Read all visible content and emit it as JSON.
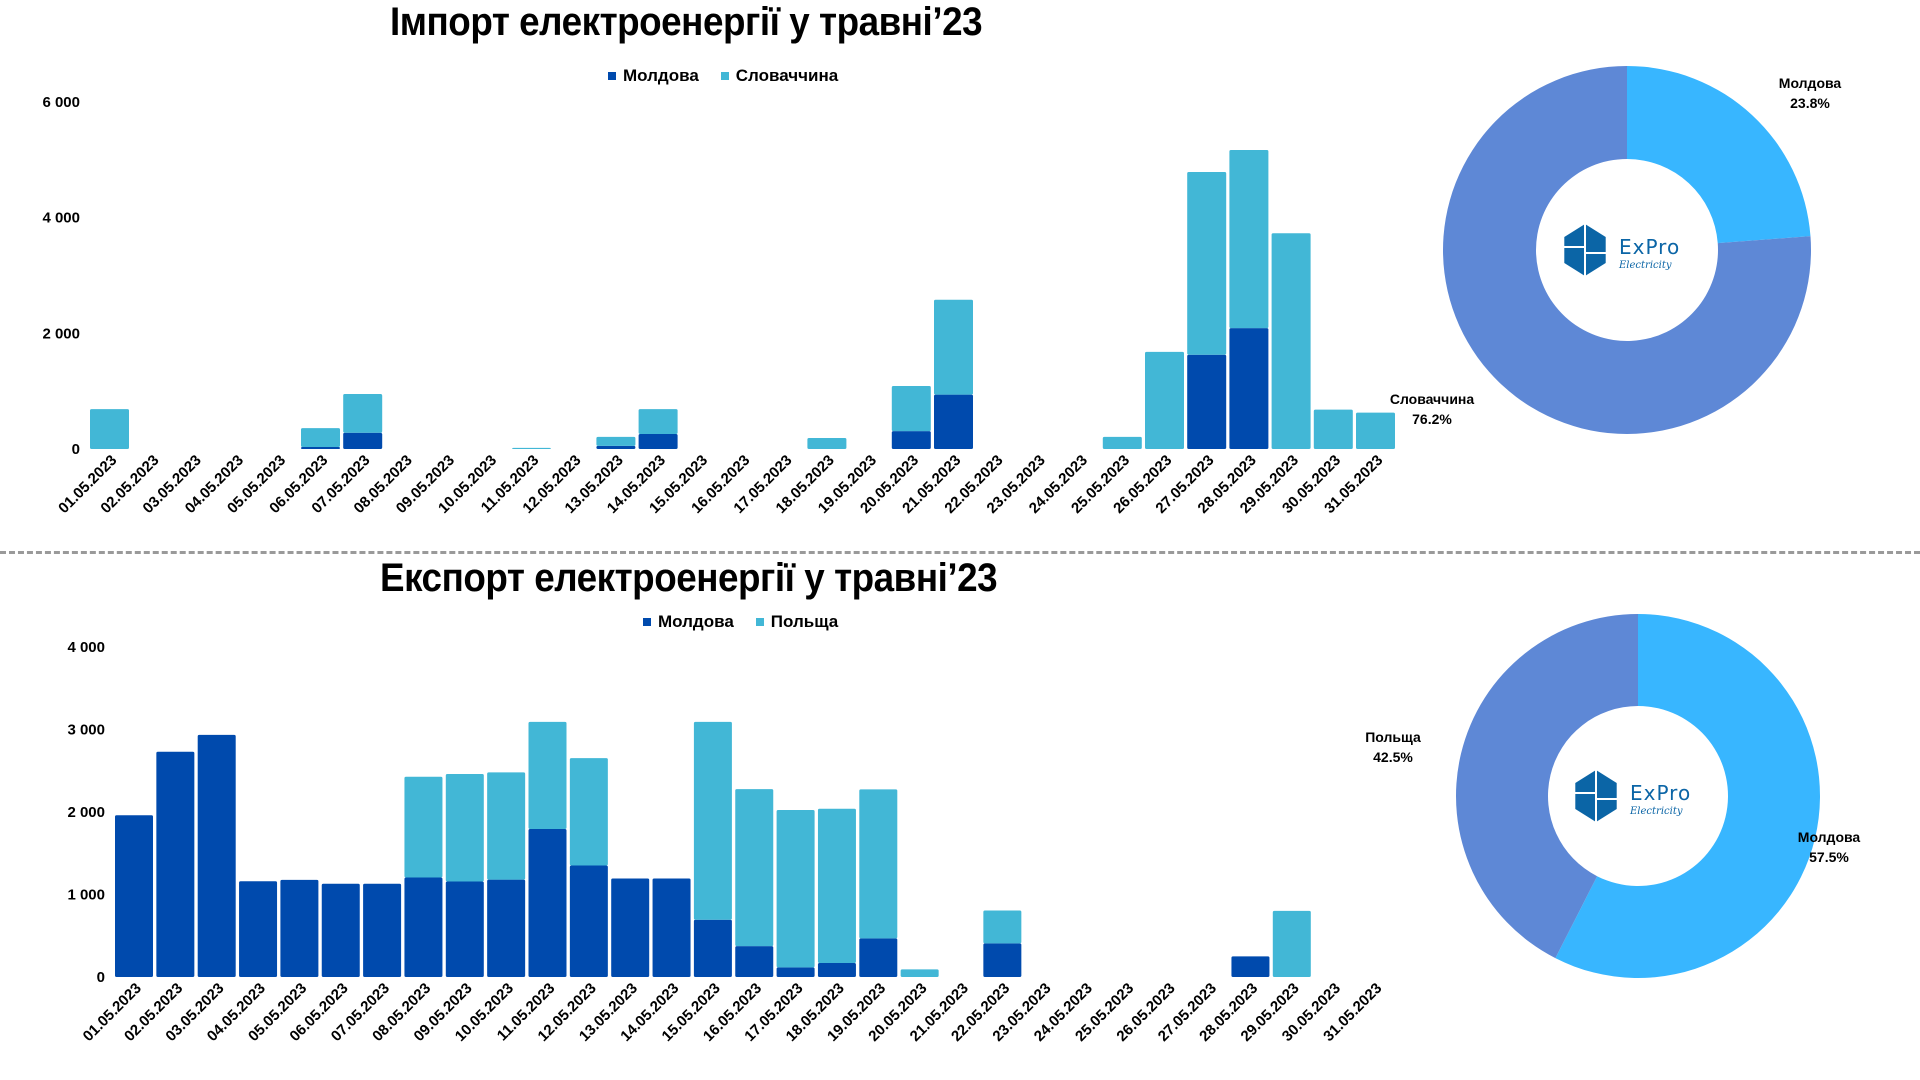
{
  "colors": {
    "moldova_bar": "#004aad",
    "second_bar": "#42b7d6",
    "pie_dark": "#5e88d6",
    "pie_light": "#38b6ff",
    "logo": "#0b65a6",
    "divider": "#9a9a9a"
  },
  "logo": {
    "name": "ExPro",
    "tagline": "Electricity"
  },
  "chart_data": [
    {
      "type": "bar",
      "stacked": true,
      "title": "Імпорт електроенергії у травні’23",
      "xlabel": "",
      "ylabel": "",
      "ylim": [
        0,
        6000
      ],
      "yticks": [
        0,
        2000,
        4000,
        6000
      ],
      "ytick_labels": [
        "0",
        "2 000",
        "4 000",
        "6 000"
      ],
      "grid": false,
      "legend_position": "top-center",
      "categories": [
        "01.05.2023",
        "02.05.2023",
        "03.05.2023",
        "04.05.2023",
        "05.05.2023",
        "06.05.2023",
        "07.05.2023",
        "08.05.2023",
        "09.05.2023",
        "10.05.2023",
        "11.05.2023",
        "12.05.2023",
        "13.05.2023",
        "14.05.2023",
        "15.05.2023",
        "16.05.2023",
        "17.05.2023",
        "18.05.2023",
        "19.05.2023",
        "20.05.2023",
        "21.05.2023",
        "22.05.2023",
        "23.05.2023",
        "24.05.2023",
        "25.05.2023",
        "26.05.2023",
        "27.05.2023",
        "28.05.2023",
        "29.05.2023",
        "30.05.2023",
        "31.05.2023"
      ],
      "series": [
        {
          "name": "Молдова",
          "values": [
            0,
            0,
            0,
            0,
            0,
            35,
            280,
            0,
            0,
            0,
            0,
            0,
            55,
            260,
            0,
            0,
            0,
            0,
            0,
            310,
            940,
            0,
            0,
            0,
            0,
            0,
            1630,
            2090,
            0,
            0,
            0
          ]
        },
        {
          "name": "Словаччина",
          "values": [
            690,
            0,
            0,
            0,
            0,
            325,
            670,
            0,
            0,
            0,
            20,
            0,
            155,
            430,
            0,
            0,
            0,
            190,
            0,
            780,
            1640,
            0,
            0,
            0,
            210,
            1680,
            3160,
            3080,
            3730,
            680,
            630
          ]
        }
      ]
    },
    {
      "type": "pie",
      "donut": true,
      "title": "",
      "labels": [
        "Молдова",
        "Словаччина"
      ],
      "values": [
        23.8,
        76.2
      ],
      "value_labels": [
        "23.8%",
        "76.2%"
      ]
    },
    {
      "type": "bar",
      "stacked": true,
      "title": "Експорт електроенергії у травні’23",
      "xlabel": "",
      "ylabel": "",
      "ylim": [
        0,
        4000
      ],
      "yticks": [
        0,
        1000,
        2000,
        3000,
        4000
      ],
      "ytick_labels": [
        "0",
        "1 000",
        "2 000",
        "3 000",
        "4 000"
      ],
      "grid": false,
      "legend_position": "top-center",
      "categories": [
        "01.05.2023",
        "02.05.2023",
        "03.05.2023",
        "04.05.2023",
        "05.05.2023",
        "06.05.2023",
        "07.05.2023",
        "08.05.2023",
        "09.05.2023",
        "10.05.2023",
        "11.05.2023",
        "12.05.2023",
        "13.05.2023",
        "14.05.2023",
        "15.05.2023",
        "16.05.2023",
        "17.05.2023",
        "18.05.2023",
        "19.05.2023",
        "20.05.2023",
        "21.05.2023",
        "22.05.2023",
        "23.05.2023",
        "24.05.2023",
        "25.05.2023",
        "26.05.2023",
        "27.05.2023",
        "28.05.2023",
        "29.05.2023",
        "30.05.2023",
        "31.05.2023"
      ],
      "series": [
        {
          "name": "Молдова",
          "values": [
            1960,
            2730,
            2935,
            1160,
            1177,
            1130,
            1130,
            1206,
            1157,
            1181,
            1794,
            1351,
            1194,
            1194,
            694,
            375,
            117,
            169,
            468,
            0,
            0,
            407,
            0,
            0,
            0,
            0,
            0,
            250,
            0,
            0,
            0
          ]
        },
        {
          "name": "Польща",
          "values": [
            0,
            0,
            0,
            0,
            0,
            0,
            0,
            1221,
            1303,
            1299,
            1299,
            1302,
            0,
            0,
            2399,
            1903,
            1907,
            1871,
            1806,
            93,
            0,
            399,
            0,
            0,
            0,
            0,
            0,
            0,
            802,
            0,
            0
          ]
        }
      ]
    },
    {
      "type": "pie",
      "donut": true,
      "title": "",
      "labels": [
        "Молдова",
        "Польща"
      ],
      "values": [
        57.5,
        42.5
      ],
      "value_labels": [
        "57.5%",
        "42.5%"
      ]
    }
  ]
}
